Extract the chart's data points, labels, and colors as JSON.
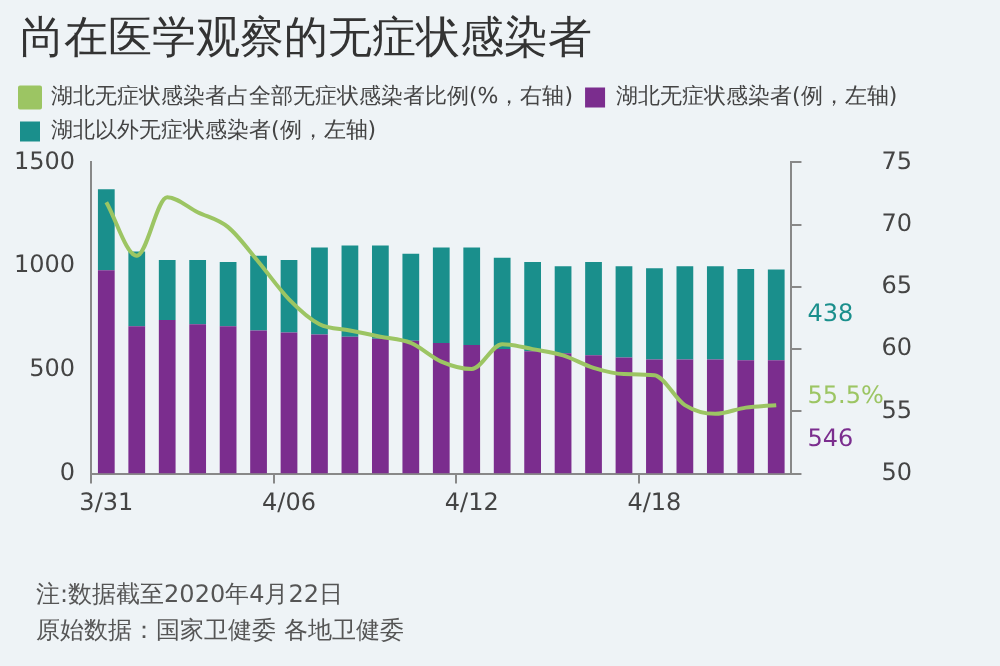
{
  "chart_data": {
    "type": "bar",
    "title": "尚在医学观察的无症状感染者",
    "categories": [
      "3/31",
      null,
      null,
      null,
      null,
      null,
      "4/06",
      null,
      null,
      null,
      null,
      null,
      "4/12",
      null,
      null,
      null,
      null,
      null,
      "4/18",
      null,
      null,
      null,
      null
    ],
    "stacked": true,
    "legend": "top",
    "marker": "none",
    "series": [
      {
        "name": "湖北无症状感染者(例，左轴)",
        "color": "#7b2d8e",
        "values": [
          980,
          710,
          740,
          720,
          710,
          690,
          680,
          670,
          660,
          650,
          640,
          630,
          620,
          600,
          590,
          580,
          570,
          560,
          550,
          550,
          550,
          546,
          546
        ],
        "value_labels": [
          null,
          null,
          null,
          null,
          null,
          null,
          null,
          null,
          null,
          null,
          null,
          null,
          null,
          null,
          null,
          null,
          null,
          null,
          null,
          null,
          null,
          null,
          "546"
        ]
      },
      {
        "name": "湖北以外无症状感染者(例，左轴)",
        "color": "#1a8f8c",
        "values": [
          390,
          360,
          290,
          310,
          310,
          360,
          350,
          420,
          440,
          450,
          420,
          460,
          470,
          440,
          430,
          420,
          450,
          440,
          440,
          450,
          450,
          440,
          438
        ],
        "value_labels": [
          null,
          null,
          null,
          null,
          null,
          null,
          null,
          null,
          null,
          null,
          null,
          null,
          null,
          null,
          null,
          null,
          null,
          null,
          null,
          null,
          null,
          null,
          "438"
        ]
      },
      {
        "type": "line",
        "axis": "y2",
        "name": "湖北无症状感染者占全部无症状感染者比例(%，右轴)",
        "color": "#9cc563",
        "values": [
          71.8,
          67.5,
          72.2,
          71,
          69.8,
          67,
          64,
          62,
          61.5,
          61,
          60.5,
          59,
          58.4,
          60.4,
          60,
          59.5,
          58.5,
          58,
          57.9,
          55.5,
          54.8,
          55.3,
          55.5
        ],
        "value_labels": [
          null,
          null,
          null,
          null,
          null,
          null,
          null,
          null,
          null,
          null,
          null,
          null,
          null,
          null,
          null,
          null,
          null,
          null,
          null,
          null,
          null,
          null,
          "55.5%"
        ]
      }
    ],
    "ylim": [
      0,
      1500
    ],
    "yticks": [
      0,
      500,
      1000,
      1500
    ],
    "y2lim": [
      50,
      75
    ],
    "y2ticks": [
      50,
      55,
      60,
      65,
      70,
      75
    ],
    "annotations": [
      "注:数据截至2020年4月22日",
      "原始数据：国家卫健委 各地卫健委"
    ]
  }
}
